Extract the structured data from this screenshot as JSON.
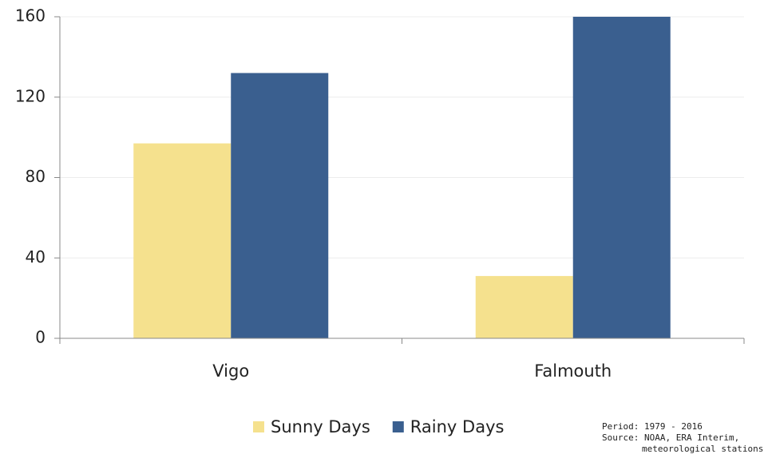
{
  "chart_data": {
    "type": "bar",
    "categories": [
      "Vigo",
      "Falmouth"
    ],
    "series": [
      {
        "name": "Sunny Days",
        "color": "#f5e18e",
        "values": [
          97,
          31
        ]
      },
      {
        "name": "Rainy Days",
        "color": "#3a5f8f",
        "values": [
          132,
          160
        ]
      }
    ],
    "ylim": [
      0,
      160
    ],
    "yticks": [
      0,
      40,
      80,
      120,
      160
    ],
    "grid": true,
    "legend": "bottom",
    "note": [
      "Period: 1979 - 2016",
      "Source: NOAA, ERA Interim,",
      "meteorological stations"
    ]
  }
}
